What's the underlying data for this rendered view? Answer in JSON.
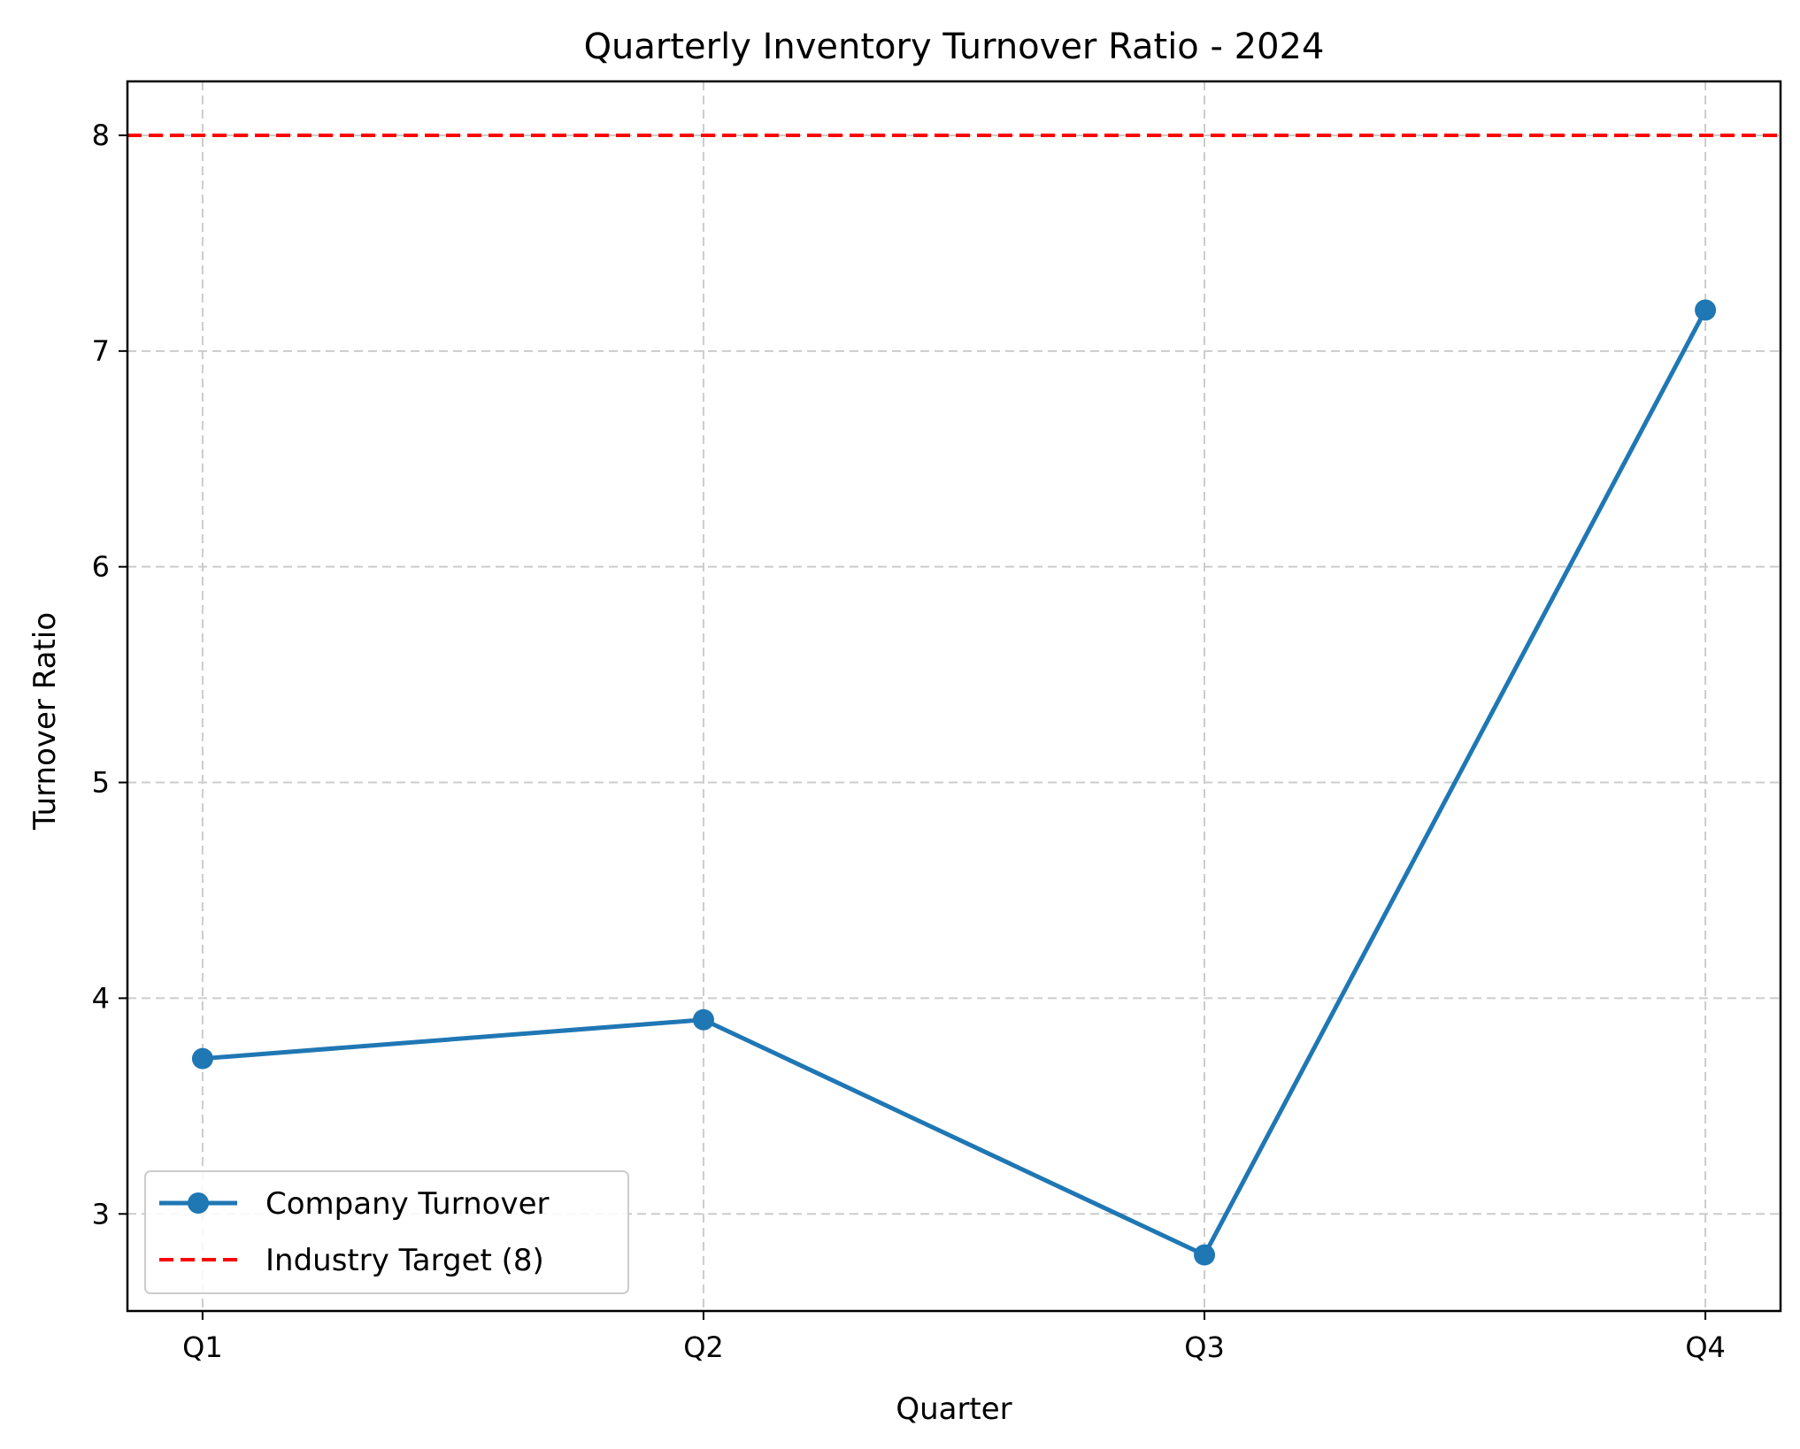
{
  "chart_data": {
    "type": "line",
    "title": "Quarterly Inventory Turnover Ratio - 2024",
    "xlabel": "Quarter",
    "ylabel": "Turnover Ratio",
    "categories": [
      "Q1",
      "Q2",
      "Q3",
      "Q4"
    ],
    "ylim": [
      2.55,
      8.25
    ],
    "yticks": [
      3,
      4,
      5,
      6,
      7,
      8
    ],
    "grid": true,
    "legend_position": "lower-left",
    "series": [
      {
        "name": "Company Turnover",
        "values": [
          3.72,
          3.9,
          2.81,
          7.19
        ],
        "color": "#1f77b4",
        "style": "solid-with-markers"
      }
    ],
    "reference_lines": [
      {
        "name": "Industry Target (8)",
        "value": 8,
        "color": "#ff0000",
        "style": "dashed"
      }
    ]
  }
}
